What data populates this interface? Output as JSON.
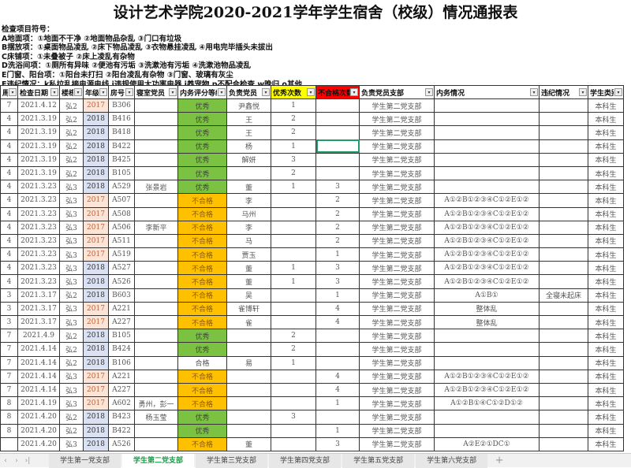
{
  "title": "设计艺术学院2020-2021学年学生宿舍（校级）情况通报表",
  "notes": [
    "检查项目符号：",
    "A地面项：①地面不干净 ②地面物品杂乱 ③门口有垃圾",
    "B摆放项：①桌面物品凌乱 ②床下物品凌乱 ③衣物悬挂凌乱 ④用电完毕插头未拔出",
    "C床铺项：①未叠被子 ②床上凌乱有杂物",
    "D洗浴间项：①厕所有异味 ②便池有污垢 ③洗漱池有污垢 ④洗漱池物品凌乱",
    "E门窗、阳台项：①阳台未打扫 ②阳台凌乱有杂物 ③门窗、玻璃有灰尘",
    "F违纪情况：k私拉乱接电源电线 j违规使用大功率电器 i养宠物 p不配合检查 w晚归 o其他"
  ],
  "colors": {
    "excellent": "#7cc242",
    "fail": "#ffc000",
    "grade2017": "#fce4d6",
    "grade2018": "#d9e1f2",
    "excellent_header": "#ffff00",
    "fail_header": "#ff0000",
    "active_tab": "#1e9c4a"
  },
  "headers": [
    "周",
    "检查日期",
    "楼栋",
    "年级",
    "房号",
    "寝室党员",
    "内务评分等级",
    "负责党员",
    "优秀次数",
    "不合格次数",
    "负责党员支部",
    "内务情况",
    "违纪情况",
    "学生类别"
  ],
  "rows": [
    [
      "7",
      "2021.4.12",
      "弘2",
      "2017",
      "B306",
      "",
      "优秀",
      "尹鑫悦",
      "1",
      "",
      "学生第二党支部",
      "",
      "",
      "本科生"
    ],
    [
      "4",
      "2021.3.19",
      "弘2",
      "2018",
      "B416",
      "",
      "优秀",
      "王",
      "2",
      "",
      "学生第二党支部",
      "",
      "",
      "本科生"
    ],
    [
      "4",
      "2021.3.19",
      "弘2",
      "2018",
      "B418",
      "",
      "优秀",
      "王",
      "2",
      "",
      "学生第二党支部",
      "",
      "",
      "本科生"
    ],
    [
      "4",
      "2021.3.19",
      "弘2",
      "2018",
      "B422",
      "",
      "优秀",
      "杨",
      "1",
      "",
      "学生第二党支部",
      "",
      "",
      "本科生"
    ],
    [
      "4",
      "2021.3.19",
      "弘2",
      "2018",
      "B425",
      "",
      "优秀",
      "解妍",
      "3",
      "",
      "学生第二党支部",
      "",
      "",
      "本科生"
    ],
    [
      "4",
      "2021.3.19",
      "弘2",
      "2018",
      "B105",
      "",
      "优秀",
      "",
      "2",
      "",
      "学生第二党支部",
      "",
      "",
      "本科生"
    ],
    [
      "4",
      "2021.3.23",
      "弘3",
      "2018",
      "A529",
      "张景岩",
      "优秀",
      "董",
      "1",
      "3",
      "学生第二党支部",
      "",
      "",
      "本科生"
    ],
    [
      "4",
      "2021.3.23",
      "弘3",
      "2017",
      "A507",
      "",
      "不合格",
      "李",
      "",
      "2",
      "学生第二党支部",
      "A①②B①②③④C①②E①②",
      "",
      "本科生"
    ],
    [
      "4",
      "2021.3.23",
      "弘3",
      "2017",
      "A508",
      "",
      "不合格",
      "马州",
      "",
      "2",
      "学生第二党支部",
      "A①②B①②③④C①②E①②",
      "",
      "本科生"
    ],
    [
      "4",
      "2021.3.23",
      "弘3",
      "2017",
      "A506",
      "李新平",
      "不合格",
      "李",
      "",
      "2",
      "学生第二党支部",
      "A①②B①②③④C①②E①②",
      "",
      "本科生"
    ],
    [
      "4",
      "2021.3.23",
      "弘3",
      "2017",
      "A511",
      "",
      "不合格",
      "马",
      "",
      "2",
      "学生第二党支部",
      "A①②B①②③④C①②E①②",
      "",
      "本科生"
    ],
    [
      "4",
      "2021.3.23",
      "弘3",
      "2017",
      "A519",
      "",
      "不合格",
      "贾玉",
      "",
      "1",
      "学生第二党支部",
      "A①②B①②③④C①②E①②",
      "",
      "本科生"
    ],
    [
      "4",
      "2021.3.23",
      "弘3",
      "2018",
      "A527",
      "",
      "不合格",
      "董",
      "1",
      "3",
      "学生第二党支部",
      "A①②B①②③④C①②E①②",
      "",
      "本科生"
    ],
    [
      "4",
      "2021.3.23",
      "弘3",
      "2018",
      "A526",
      "",
      "不合格",
      "董",
      "1",
      "3",
      "学生第二党支部",
      "A①②B①②③④C①②E①②",
      "",
      "本科生"
    ],
    [
      "3",
      "2021.3.17",
      "弘2",
      "2018",
      "B603",
      "",
      "不合格",
      "吴",
      "",
      "1",
      "学生第二党支部",
      "A①B①",
      "全寝未起床",
      "本科生"
    ],
    [
      "3",
      "2021.3.17",
      "弘3",
      "2017",
      "A221",
      "",
      "不合格",
      "雀博轩",
      "",
      "4",
      "学生第二党支部",
      "整体乱",
      "",
      "本科生"
    ],
    [
      "3",
      "2021.3.17",
      "弘3",
      "2017",
      "A227",
      "",
      "不合格",
      "雀",
      "",
      "4",
      "学生第二党支部",
      "整体乱",
      "",
      "本科生"
    ],
    [
      "7",
      "2021.4.9",
      "弘2",
      "2018",
      "B105",
      "",
      "优秀",
      "",
      "2",
      "",
      "学生第二党支部",
      "",
      "",
      "本科生"
    ],
    [
      "7",
      "2021.4.14",
      "弘2",
      "2018",
      "B424",
      "",
      "优秀",
      "",
      "2",
      "",
      "学生第二党支部",
      "",
      "",
      "本科生"
    ],
    [
      "7",
      "2021.4.14",
      "弘2",
      "2018",
      "B106",
      "",
      "合格",
      "易",
      "1",
      "",
      "学生第二党支部",
      "",
      "",
      "本科生"
    ],
    [
      "7",
      "2021.4.14",
      "弘3",
      "2017",
      "A221",
      "",
      "不合格",
      "",
      "",
      "4",
      "学生第二党支部",
      "A①②B①②③④C①②E①②",
      "",
      "本科生"
    ],
    [
      "7",
      "2021.4.14",
      "弘3",
      "2017",
      "A227",
      "",
      "不合格",
      "",
      "",
      "4",
      "学生第二党支部",
      "A①②B①②③④C①②E①②",
      "",
      "本科生"
    ],
    [
      "8",
      "2021.4.19",
      "弘3",
      "2017",
      "A602",
      "勇州，彭一",
      "不合格",
      "",
      "",
      "1",
      "学生第二党支部",
      "A①②B①④C①②D①②",
      "",
      "本科生"
    ],
    [
      "8",
      "2021.4.20",
      "弘2",
      "2018",
      "B423",
      "杨玉莹",
      "优秀",
      "",
      "3",
      "",
      "学生第二党支部",
      "",
      "",
      "本科生"
    ],
    [
      "8",
      "2021.4.20",
      "弘2",
      "2018",
      "B422",
      "",
      "优秀",
      "",
      "",
      "1",
      "学生第二党支部",
      "",
      "",
      "本科生"
    ],
    [
      "",
      "2021.4.20",
      "弘3",
      "2018",
      "A526",
      "",
      "不合格",
      "董",
      "",
      "3",
      "学生第二党支部",
      "A②E②①DC①",
      "",
      "本科生"
    ]
  ],
  "tabs": [
    "学生第一党支部",
    "学生第二党支部",
    "学生第三党支部",
    "学生第四党支部",
    "学生第五党支部",
    "学生第六党支部"
  ],
  "active_tab": 1,
  "tab_nav": [
    "‹",
    "›",
    "›|"
  ],
  "add_tab": "+"
}
